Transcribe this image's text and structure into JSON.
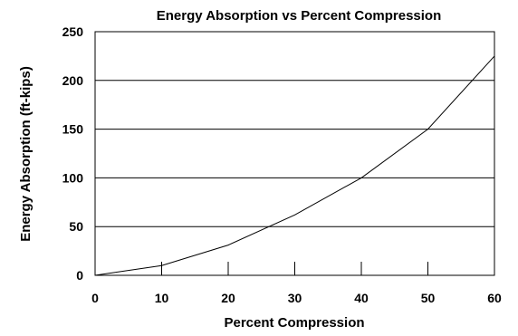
{
  "chart_data": {
    "type": "line",
    "title": "Energy Absorption vs Percent Compression",
    "xlabel": "Percent Compression",
    "ylabel": "Energy Absorption (ft-kips)",
    "xlim": [
      0,
      60
    ],
    "ylim": [
      0,
      250
    ],
    "xticks": [
      "0",
      "10",
      "20",
      "30",
      "40",
      "50",
      "60"
    ],
    "yticks": [
      "0",
      "50",
      "100",
      "150",
      "200",
      "250"
    ],
    "grid": "horizontal",
    "legend": "none",
    "series": [
      {
        "x": [
          0,
          10,
          20,
          30,
          40,
          50,
          60
        ],
        "y": [
          0,
          10,
          31,
          62,
          100,
          150,
          225
        ],
        "color": "#000000"
      }
    ]
  }
}
